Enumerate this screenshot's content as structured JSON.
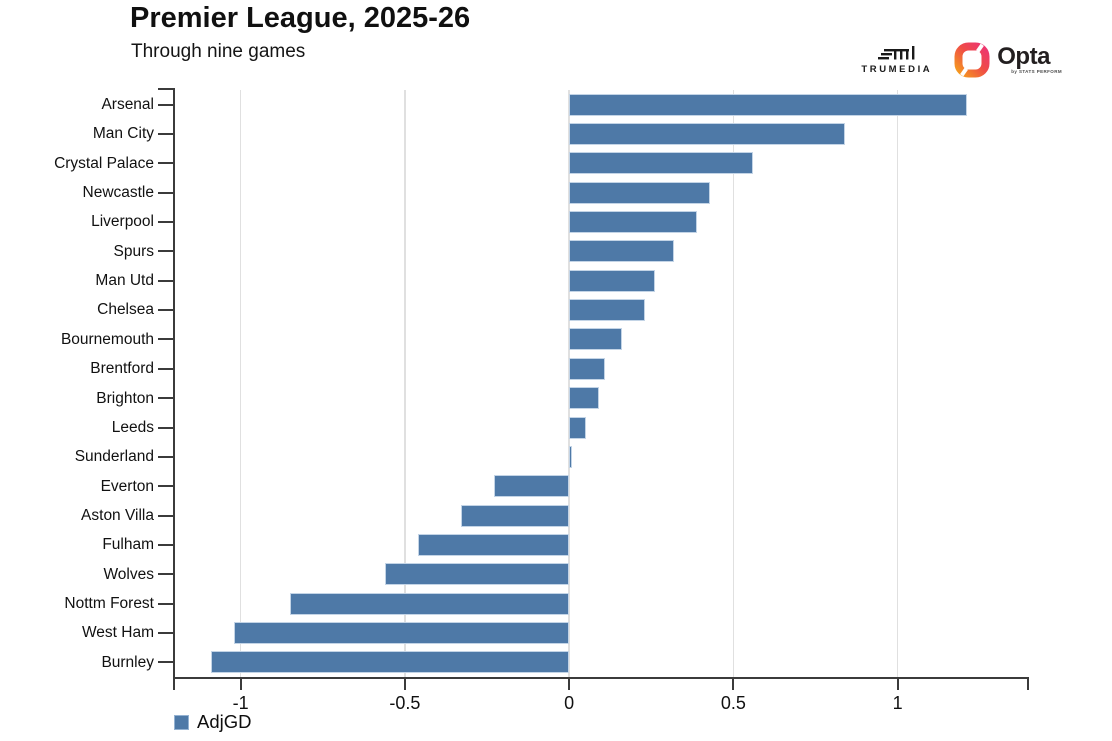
{
  "header": {
    "title": "Premier League, 2025-26",
    "subtitle": "Through nine games"
  },
  "logos": {
    "trumedia_label": "TRUMEDIA",
    "opta_label": "Opta",
    "opta_sub": "by STATS PERFORM"
  },
  "legend": {
    "label": "AdjGD"
  },
  "colors": {
    "bar_fill": "#4e79a7",
    "bar_stroke": "#c3d4e6",
    "axis": "#3b3b3b",
    "gridline": "#e0e0e0",
    "opta_gradient_start": "#f59b1e",
    "opta_gradient_end": "#ed3572"
  },
  "chart_data": {
    "type": "bar",
    "orientation": "horizontal",
    "title": "Premier League, 2025-26",
    "subtitle": "Through nine games",
    "series_label": "AdjGD",
    "categories": [
      "Arsenal",
      "Man City",
      "Crystal Palace",
      "Newcastle",
      "Liverpool",
      "Spurs",
      "Man Utd",
      "Chelsea",
      "Bournemouth",
      "Brentford",
      "Brighton",
      "Leeds",
      "Sunderland",
      "Everton",
      "Aston Villa",
      "Fulham",
      "Wolves",
      "Nottm Forest",
      "West Ham",
      "Burnley"
    ],
    "values": [
      1.21,
      0.84,
      0.56,
      0.43,
      0.39,
      0.32,
      0.26,
      0.23,
      0.16,
      0.11,
      0.09,
      0.05,
      0.01,
      -0.23,
      -0.33,
      -0.46,
      -0.56,
      -0.85,
      -1.02,
      -1.09
    ],
    "xlim": [
      -1.2,
      1.4
    ],
    "xticks": [
      -1,
      -0.5,
      0,
      0.5,
      1
    ],
    "xtick_labels": [
      "-1",
      "-0.5",
      "0",
      "0.5",
      "1"
    ],
    "grid": "vertical-gridlines-on",
    "legend_position": "bottom-left",
    "bar_color": "#4e79a7"
  }
}
